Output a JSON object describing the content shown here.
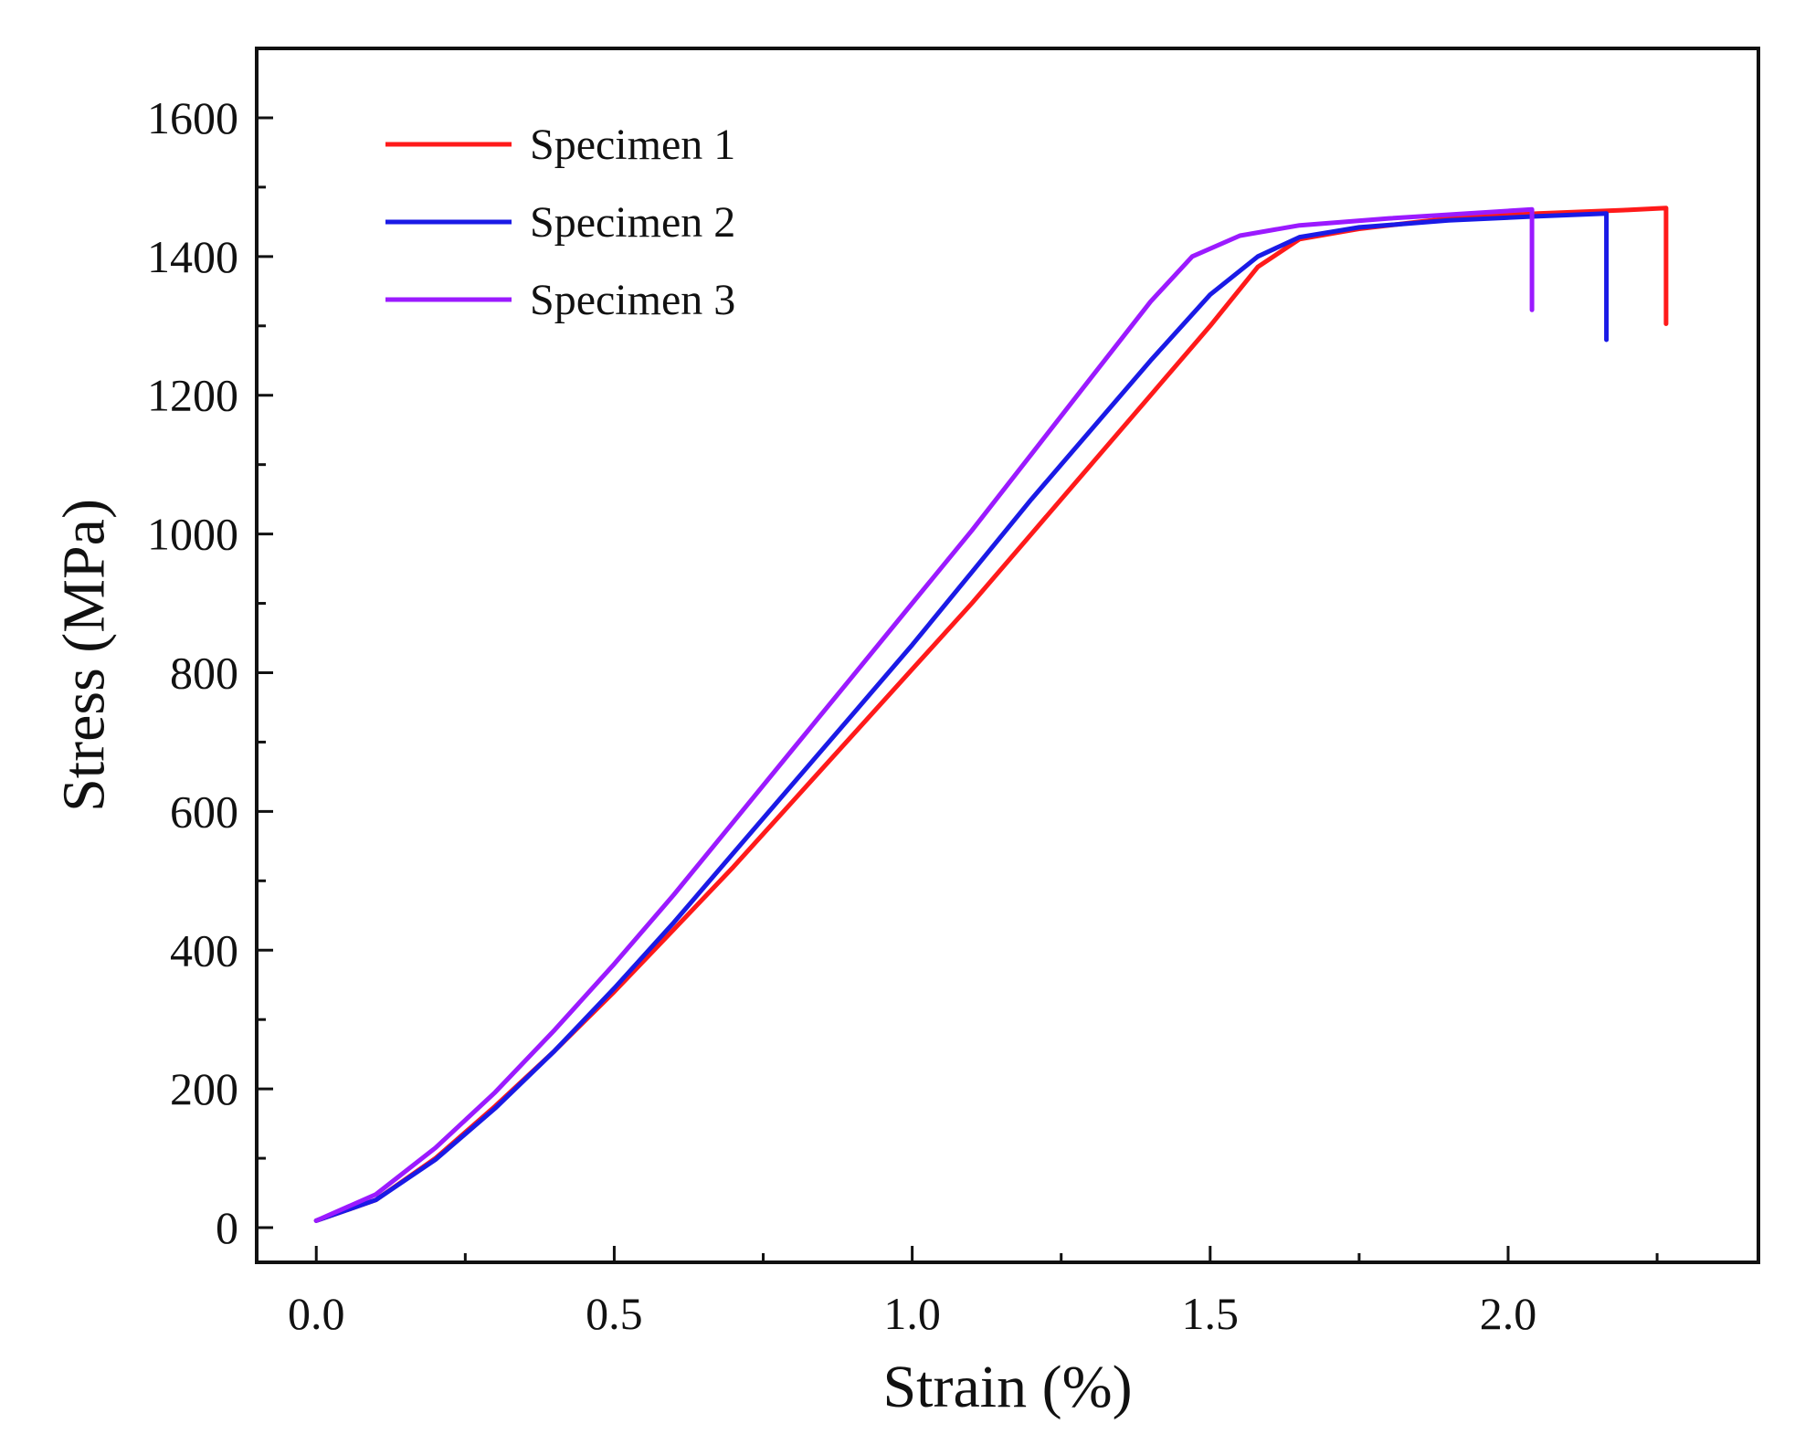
{
  "chart_data": {
    "type": "line",
    "title": "",
    "xlabel": "Strain (%)",
    "ylabel": "Stress (MPa)",
    "xlim": [
      -0.1,
      2.42
    ],
    "ylim": [
      -50,
      1700
    ],
    "xticks": [
      0.0,
      0.5,
      1.0,
      1.5,
      2.0
    ],
    "xtick_labels": [
      "0.0",
      "0.5",
      "1.0",
      "1.5",
      "2.0"
    ],
    "yticks": [
      0,
      200,
      400,
      600,
      800,
      1000,
      1200,
      1400,
      1600
    ],
    "ytick_labels": [
      "0",
      "200",
      "400",
      "600",
      "800",
      "1000",
      "1200",
      "1400",
      "1600"
    ],
    "x_minor_step": 0.25,
    "y_minor_step": 100,
    "grid": false,
    "legend_position": "top-left",
    "series": [
      {
        "name": "Specimen 1",
        "color": "#ff1a1a",
        "points": [
          [
            0.0,
            10
          ],
          [
            0.1,
            40
          ],
          [
            0.2,
            100
          ],
          [
            0.3,
            175
          ],
          [
            0.4,
            255
          ],
          [
            0.5,
            340
          ],
          [
            0.6,
            430
          ],
          [
            0.7,
            520
          ],
          [
            0.8,
            615
          ],
          [
            0.9,
            710
          ],
          [
            1.0,
            805
          ],
          [
            1.1,
            900
          ],
          [
            1.2,
            1000
          ],
          [
            1.3,
            1100
          ],
          [
            1.4,
            1200
          ],
          [
            1.5,
            1300
          ],
          [
            1.58,
            1385
          ],
          [
            1.65,
            1425
          ],
          [
            1.75,
            1440
          ],
          [
            1.9,
            1455
          ],
          [
            2.05,
            1462
          ],
          [
            2.2,
            1467
          ],
          [
            2.265,
            1470
          ],
          [
            2.265,
            1303
          ]
        ]
      },
      {
        "name": "Specimen 2",
        "color": "#1a1ae6",
        "points": [
          [
            0.0,
            10
          ],
          [
            0.1,
            40
          ],
          [
            0.2,
            98
          ],
          [
            0.3,
            172
          ],
          [
            0.4,
            255
          ],
          [
            0.5,
            345
          ],
          [
            0.6,
            440
          ],
          [
            0.7,
            540
          ],
          [
            0.8,
            640
          ],
          [
            0.9,
            740
          ],
          [
            1.0,
            840
          ],
          [
            1.1,
            945
          ],
          [
            1.2,
            1050
          ],
          [
            1.3,
            1150
          ],
          [
            1.4,
            1250
          ],
          [
            1.5,
            1345
          ],
          [
            1.58,
            1400
          ],
          [
            1.65,
            1428
          ],
          [
            1.75,
            1442
          ],
          [
            1.9,
            1452
          ],
          [
            2.05,
            1458
          ],
          [
            2.165,
            1462
          ],
          [
            2.165,
            1280
          ]
        ]
      },
      {
        "name": "Specimen 3",
        "color": "#9b1aff",
        "points": [
          [
            0.0,
            10
          ],
          [
            0.1,
            48
          ],
          [
            0.2,
            115
          ],
          [
            0.3,
            195
          ],
          [
            0.4,
            285
          ],
          [
            0.5,
            380
          ],
          [
            0.6,
            480
          ],
          [
            0.7,
            585
          ],
          [
            0.8,
            690
          ],
          [
            0.9,
            795
          ],
          [
            1.0,
            900
          ],
          [
            1.1,
            1005
          ],
          [
            1.2,
            1115
          ],
          [
            1.3,
            1225
          ],
          [
            1.4,
            1335
          ],
          [
            1.47,
            1400
          ],
          [
            1.55,
            1430
          ],
          [
            1.65,
            1445
          ],
          [
            1.8,
            1455
          ],
          [
            1.95,
            1463
          ],
          [
            2.04,
            1468
          ],
          [
            2.04,
            1323
          ]
        ]
      }
    ]
  }
}
